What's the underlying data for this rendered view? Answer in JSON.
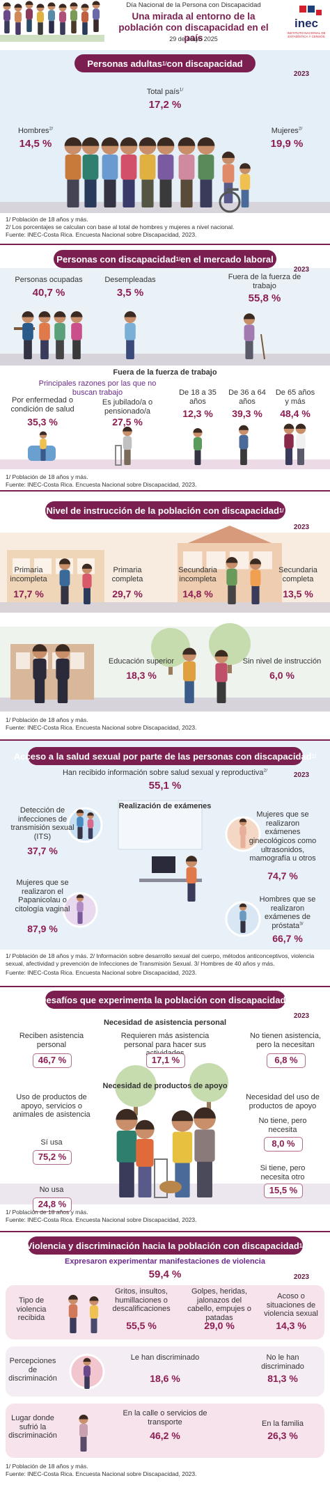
{
  "header": {
    "kicker": "Día Nacional de la Persona con Discapacidad",
    "title": "Una mirada al entorno de la población con discapacidad en el país",
    "date": "29 de mayo 2025",
    "logo": "inec",
    "logo_sub": "INSTITUTO NACIONAL DE ESTADÍSTICA Y CENSOS"
  },
  "s1": {
    "title": {
      "text": "Personas adultas",
      "sup": "1/",
      "after": " con discapacidad"
    },
    "year": "2023",
    "total_label": "Total país",
    "total_sup": "1/",
    "total": "17,2 %",
    "men_label": "Hombres",
    "men_sup": "2/",
    "men": "14,5 %",
    "women_label": "Mujeres",
    "women_sup": "2/",
    "women": "19,9 %",
    "notes": [
      "1/ Población de 18 años y más.",
      "2/ Los porcentajes se calculan con base al total de hombres y mujeres a nivel nacional.",
      "Fuente: INEC-Costa Rica. Encuesta Nacional sobre Discapacidad, 2023."
    ]
  },
  "s2": {
    "title": {
      "text": "Personas con discapacidad",
      "sup": "1/",
      "after": " en el mercado laboral"
    },
    "year": "2023",
    "employed_label": "Personas ocupadas",
    "employed": "40,7 %",
    "unemployed_label": "Desempleadas",
    "unemployed": "3,5 %",
    "outside_label": "Fuera de la fuerza de trabajo",
    "outside": "55,8 %",
    "sub_title": "Fuera de la fuerza de trabajo",
    "reasons_title": "Principales razones por las que no buscan trabajo",
    "health_label": "Por enfermedad o condición de salud",
    "health": "35,3 %",
    "retired_label": "Es jubilado/a o pensionado/a",
    "retired": "27,5 %",
    "age1_label": "De 18 a 35 años",
    "age1": "12,3 %",
    "age2_label": "De 36 a 64 años",
    "age2": "39,3 %",
    "age3_label": "De 65 años y más",
    "age3": "48,4 %",
    "notes": [
      "1/ Población de 18 años y más.",
      "Fuente: INEC-Costa Rica. Encuesta Nacional sobre Discapacidad, 2023."
    ]
  },
  "s3": {
    "title": {
      "text": "Nivel de instrucción de la población con discapacidad",
      "sup": "1/"
    },
    "year": "2023",
    "prim_inc_label": "Primaria incompleta",
    "prim_inc": "17,7 %",
    "prim_comp_label": "Primaria completa",
    "prim_comp": "29,7 %",
    "sec_inc_label": "Secundaria incompleta",
    "sec_inc": "14,8 %",
    "sec_comp_label": "Secundaria completa",
    "sec_comp": "13,5 %",
    "higher_label": "Educación superior",
    "higher": "18,3 %",
    "none_label": "Sin nivel de instrucción",
    "none": "6,0 %",
    "notes": [
      "1/ Población de 18 años y más.",
      "Fuente: INEC-Costa Rica. Encuesta Nacional sobre Discapacidad, 2023."
    ]
  },
  "s4": {
    "title": {
      "text": "Acceso a la salud sexual por parte de las personas con discapacidad",
      "sup": "1/"
    },
    "year": "2023",
    "info_label": "Han recibido información sobre salud sexual y reproductiva",
    "info_sup": "2/",
    "info": "55,1 %",
    "exams_title": "Realización de exámenes",
    "its_label": "Detección de infecciones de transmisión sexual (ITS)",
    "its": "37,7 %",
    "gyn_label": "Mujeres que se realizaron exámenes ginecológicos como ultrasonidos, mamografía u otros",
    "gyn": "74,7 %",
    "pap_label": "Mujeres que se realizaron el Papanicolau o citología vaginal",
    "pap": "87,9 %",
    "prostate_label": "Hombres que se realizaron exámenes de próstata",
    "prostate_sup": "3/",
    "prostate": "66,7 %",
    "notes": [
      "1/ Población de 18 años y más.  2/ Información sobre desarrollo sexual del cuerpo, métodos anticonceptivos, violencia sexual, afectividad y prevención de Infecciones de Transmisión Sexual. 3/ Hombres de 40 años y más.",
      "Fuente: INEC-Costa Rica. Encuesta Nacional sobre Discapacidad, 2023."
    ]
  },
  "s5": {
    "title": {
      "text": "Desafíos que experimenta la población con discapacidad",
      "sup": "1/"
    },
    "year": "2023",
    "assist_title": "Necesidad de asistencia personal",
    "receive_label": "Reciben asistencia personal",
    "receive": "46,7 %",
    "need_more_label": "Requieren más asistencia personal para hacer sus actividades",
    "need_more": "17,1 %",
    "lack_label": "No tienen asistencia, pero la necesitan",
    "lack": "6,8 %",
    "products_title": "Necesidad de productos de apoyo",
    "use_title": "Uso de productos de apoyo, servicios o animales de asistencia",
    "uses_label": "Sí usa",
    "uses": "75,2 %",
    "not_use_label": "No usa",
    "not_use": "24,8 %",
    "need_title": "Necesidad del uso de productos de apoyo",
    "need_none_label": "No tiene, pero necesita",
    "need_none": "8,0 %",
    "need_other_label": "Si tiene, pero necesita otro",
    "need_other": "15,5 %",
    "notes": [
      "1/ Población de 18 años y más.",
      "Fuente: INEC-Costa Rica. Encuesta Nacional sobre Discapacidad, 2023."
    ]
  },
  "s6": {
    "title": {
      "text": "Violencia y discriminación hacia la población con discapacidad",
      "sup": "1/"
    },
    "year": "2023",
    "violence_label": "Expresaron experimentar manifestaciones de violencia",
    "violence": "59,4 %",
    "type_label": "Tipo de violencia recibida",
    "verbal_label": "Gritos, insultos, humillaciones o descalificaciones",
    "verbal": "55,5 %",
    "physical_label": "Golpes, heridas, jalonazos del cabello, empujes o patadas",
    "physical": "29,0 %",
    "sexual_label": "Acoso o situaciones de violencia sexual",
    "sexual": "14,3 %",
    "perception_label": "Percepciones de discriminación",
    "discriminated_label": "Le han discriminado",
    "discriminated": "18,6 %",
    "not_discriminated_label": "No le han discriminado",
    "not_discriminated": "81,3 %",
    "place_label": "Lugar donde sufrió la discriminación",
    "street_label": "En la calle o servicios de transporte",
    "street": "46,2 %",
    "family_label": "En la familia",
    "family": "26,3 %",
    "notes": [
      "1/ Población de 18 años y más.",
      "Fuente: INEC-Costa Rica. Encuesta Nacional sobre Discapacidad, 2023."
    ]
  }
}
